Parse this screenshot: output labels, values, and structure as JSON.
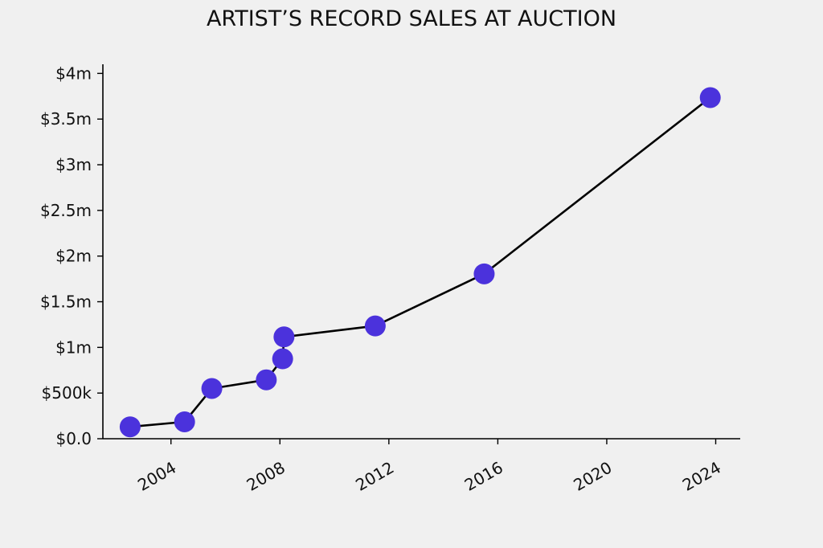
{
  "chart_data": {
    "type": "scatter",
    "title": "ARTIST’S RECORD SALES AT AUCTION",
    "xlabel": "",
    "ylabel": "",
    "x_ticks": [
      2004,
      2008,
      2012,
      2016,
      2020,
      2024
    ],
    "x_tick_labels": [
      "2004",
      "2008",
      "2012",
      "2016",
      "2020",
      "2024"
    ],
    "y_ticks": [
      0,
      500000,
      1000000,
      1500000,
      2000000,
      2500000,
      3000000,
      3500000,
      4000000
    ],
    "y_tick_labels": [
      "$0.0",
      "$500k",
      "$1m",
      "$1.5m",
      "$2m",
      "$2.5m",
      "$3m",
      "$3.5m",
      "$4m"
    ],
    "xlim": [
      2001.5,
      2024.9
    ],
    "ylim": [
      0,
      4100000
    ],
    "line_color": "#000000",
    "marker_color": "#4b32dc",
    "series": [
      {
        "x": [
          2002.5,
          2004.5,
          2005.5,
          2007.5,
          2008.1,
          2008.15,
          2011.5,
          2015.5,
          2023.8
        ],
        "y": [
          130000,
          185000,
          550000,
          645000,
          875000,
          1115000,
          1235000,
          1805000,
          3735000
        ]
      }
    ],
    "grid": false,
    "legend": "none"
  }
}
